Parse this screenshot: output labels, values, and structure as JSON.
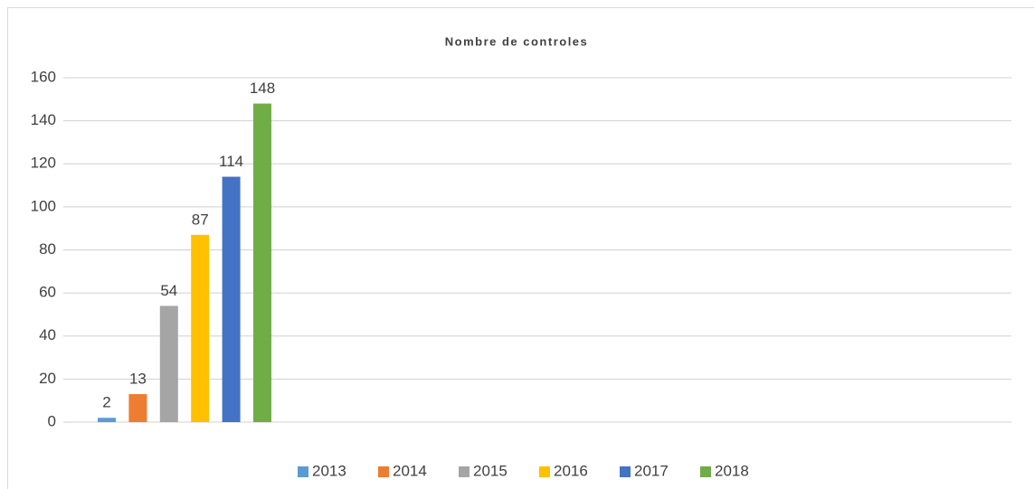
{
  "chart_data": {
    "type": "bar",
    "title": "Nombre de controles",
    "categories": [
      null
    ],
    "series": [
      {
        "name": "2013",
        "color": "#5b9bd5",
        "values": [
          2
        ]
      },
      {
        "name": "2014",
        "color": "#ed7d31",
        "values": [
          13
        ]
      },
      {
        "name": "2015",
        "color": "#a5a5a5",
        "values": [
          54
        ]
      },
      {
        "name": "2016",
        "color": "#ffc000",
        "values": [
          87
        ]
      },
      {
        "name": "2017",
        "color": "#4472c4",
        "values": [
          114
        ]
      },
      {
        "name": "2018",
        "color": "#70ad47",
        "values": [
          148
        ]
      }
    ],
    "ylim": [
      0,
      160
    ],
    "yticks": [
      0,
      20,
      40,
      60,
      80,
      100,
      120,
      140,
      160
    ],
    "grid": true,
    "legend": "bottom"
  }
}
